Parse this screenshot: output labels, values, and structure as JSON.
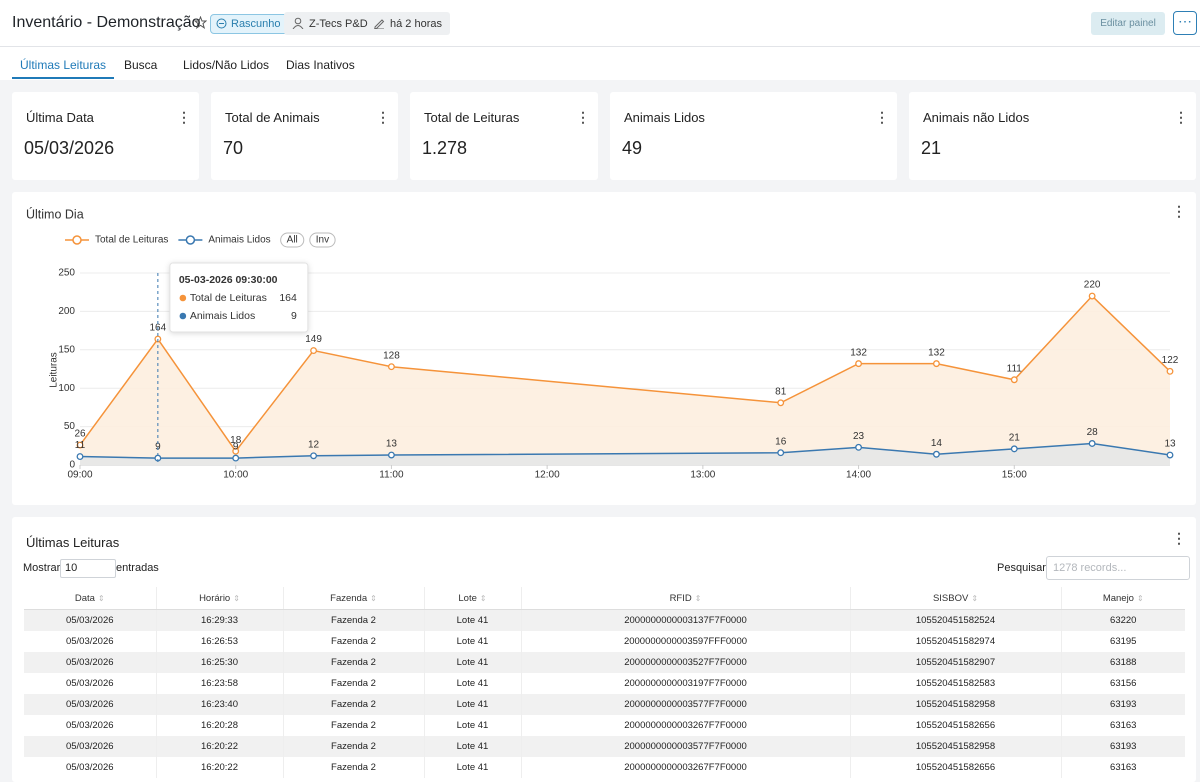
{
  "header": {
    "title": "Inventário - Demonstração",
    "badge": "Rascunho",
    "owner": "Z-Tecs P&D",
    "edited": "há 2 horas",
    "edit_button": "Editar painel"
  },
  "tabs": [
    "Últimas Leituras",
    "Busca",
    "Lidos/Não Lidos",
    "Dias Inativos"
  ],
  "stats": [
    {
      "label": "Última Data",
      "value": "05/03/2026"
    },
    {
      "label": "Total de Animais",
      "value": "70"
    },
    {
      "label": "Total de Leituras",
      "value": "1.278"
    },
    {
      "label": "Animais Lidos",
      "value": "49"
    },
    {
      "label": "Animais não Lidos",
      "value": "21"
    }
  ],
  "chart_data": {
    "type": "line",
    "title": "Último Dia",
    "ylabel": "Leituras",
    "x": [
      "09:00",
      "09:30",
      "10:00",
      "10:30",
      "11:00",
      "13:30",
      "14:00",
      "14:30",
      "15:00",
      "15:30",
      "16:00"
    ],
    "series": [
      {
        "name": "Total de Leituras",
        "color": "#f5933a",
        "values": [
          26,
          164,
          18,
          149,
          128,
          81,
          132,
          132,
          111,
          220,
          122
        ]
      },
      {
        "name": "Animais Lidos",
        "color": "#3a78b0",
        "values": [
          11,
          9,
          9,
          12,
          13,
          16,
          23,
          14,
          21,
          28,
          13
        ]
      }
    ],
    "xlim": [
      "09:00",
      "16:00"
    ],
    "xticks": [
      "09:00",
      "10:00",
      "11:00",
      "12:00",
      "13:00",
      "14:00",
      "15:00"
    ],
    "ylim": [
      0,
      250
    ],
    "yticks": [
      0,
      50,
      100,
      150,
      200,
      250
    ],
    "grid": true,
    "legend_buttons": [
      "All",
      "Inv"
    ],
    "tooltip": {
      "title": "05-03-2026 09:30:00",
      "items": [
        {
          "label": "Total de Leituras",
          "value": "164"
        },
        {
          "label": "Animais Lidos",
          "value": "9"
        }
      ]
    }
  },
  "table": {
    "title": "Últimas Leituras",
    "show_label": "Mostrar",
    "page_size": "10",
    "entries_label": "entradas",
    "search_label": "Pesquisar",
    "search_placeholder": "1278 records...",
    "columns": [
      "Data",
      "Horário",
      "Fazenda",
      "Lote",
      "RFID",
      "SISBOV",
      "Manejo"
    ],
    "rows": [
      [
        "05/03/2026",
        "16:29:33",
        "Fazenda 2",
        "Lote 41",
        "2000000000003137F7F0000",
        "105520451582524",
        "63220"
      ],
      [
        "05/03/2026",
        "16:26:53",
        "Fazenda 2",
        "Lote 41",
        "2000000000003597FFF0000",
        "105520451582974",
        "63195"
      ],
      [
        "05/03/2026",
        "16:25:30",
        "Fazenda 2",
        "Lote 41",
        "2000000000003527F7F0000",
        "105520451582907",
        "63188"
      ],
      [
        "05/03/2026",
        "16:23:58",
        "Fazenda 2",
        "Lote 41",
        "2000000000003197F7F0000",
        "105520451582583",
        "63156"
      ],
      [
        "05/03/2026",
        "16:23:40",
        "Fazenda 2",
        "Lote 41",
        "2000000000003577F7F0000",
        "105520451582958",
        "63193"
      ],
      [
        "05/03/2026",
        "16:20:28",
        "Fazenda 2",
        "Lote 41",
        "2000000000003267F7F0000",
        "105520451582656",
        "63163"
      ],
      [
        "05/03/2026",
        "16:20:22",
        "Fazenda 2",
        "Lote 41",
        "2000000000003577F7F0000",
        "105520451582958",
        "63193"
      ],
      [
        "05/03/2026",
        "16:20:22",
        "Fazenda 2",
        "Lote 41",
        "2000000000003267F7F0000",
        "105520451582656",
        "63163"
      ]
    ]
  }
}
